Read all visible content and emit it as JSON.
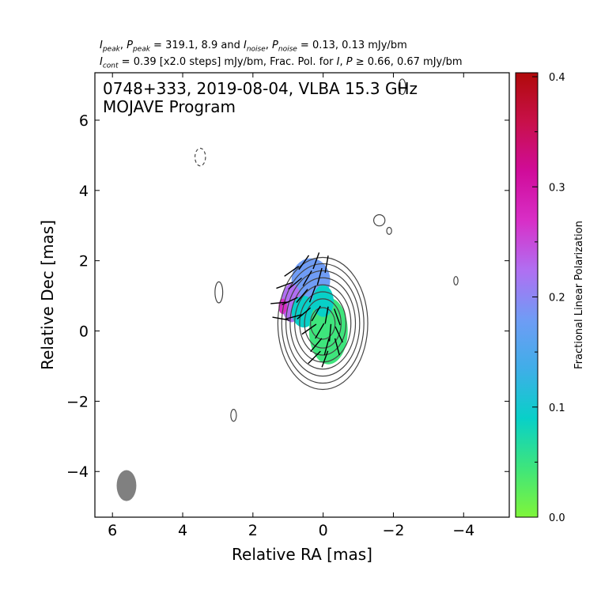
{
  "header": {
    "line1": {
      "peak_sym_i": "I",
      "peak_sub": "peak",
      "peak_sym_p": "P",
      "peak_text": " = 319.1, 8.9 and ",
      "noise_sym_i": "I",
      "noise_sub": "noise",
      "noise_sym_p": "P",
      "noise_text": " = 0.13, 0.13 mJy/bm"
    },
    "line2": {
      "cont_sym": "I",
      "cont_sub": "cont",
      "cont_text": " = 0.39 [x2.0 steps] mJy/bm, Frac. Pol. for ",
      "fp_i": "I",
      "fp_p": "P",
      "fp_text": " ≥  0.66, 0.67 mJy/bm"
    }
  },
  "chart_data": {
    "type": "heatmap",
    "title_line1": "0748+333, 2019-08-04, VLBA 15.3 GHz",
    "title_line2": "MOJAVE Program",
    "xlabel": "Relative RA [mas]",
    "ylabel": "Relative Dec [mas]",
    "xlim": [
      6.5,
      -5.3
    ],
    "ylim": [
      -5.3,
      7.35
    ],
    "x_inverted": true,
    "xticks": [
      6,
      4,
      2,
      0,
      -2,
      -4
    ],
    "xtick_labels": [
      "6",
      "4",
      "2",
      "0",
      "−2",
      "−4"
    ],
    "yticks": [
      -4,
      -2,
      0,
      2,
      4,
      6
    ],
    "ytick_labels": [
      "−4",
      "−2",
      "0",
      "2",
      "4",
      "6"
    ],
    "colorbar": {
      "label": "Fractional Linear Polarization",
      "range": [
        0.0,
        0.4
      ],
      "ticks": [
        0.0,
        0.1,
        0.2,
        0.3,
        0.4
      ],
      "tick_labels": [
        "0.0",
        "0.1",
        "0.2",
        "0.3",
        "0.4"
      ],
      "colormap": [
        "#7ff53a",
        "#3ee57c",
        "#08d0c8",
        "#3faee8",
        "#6f9cf5",
        "#b06ff2",
        "#d82fc7",
        "#d00c9a",
        "#c8104a",
        "#b00a0a"
      ]
    },
    "beam": {
      "x": 5.6,
      "y": -4.4,
      "major": 0.88,
      "minor": 0.56,
      "pa_deg": 0
    },
    "core_contours": {
      "center": [
        0.1,
        0.35
      ],
      "levels": [
        {
          "rx": 0.35,
          "ry": 0.45
        },
        {
          "rx": 0.52,
          "ry": 0.7
        },
        {
          "rx": 0.66,
          "ry": 0.9
        },
        {
          "rx": 0.8,
          "ry": 1.1
        },
        {
          "rx": 0.93,
          "ry": 1.3
        },
        {
          "rx": 1.05,
          "ry": 1.5
        },
        {
          "rx": 1.17,
          "ry": 1.7
        },
        {
          "rx": 1.28,
          "ry": 1.88
        }
      ]
    },
    "isolated_contours": [
      {
        "x": 3.5,
        "y": 4.95,
        "rx": 0.15,
        "ry": 0.25,
        "dashed": true
      },
      {
        "x": 2.97,
        "y": 1.1,
        "rx": 0.11,
        "ry": 0.3,
        "dashed": false
      },
      {
        "x": 2.55,
        "y": -2.4,
        "rx": 0.08,
        "ry": 0.17,
        "dashed": false
      },
      {
        "x": -1.6,
        "y": 3.15,
        "rx": 0.16,
        "ry": 0.16,
        "dashed": false
      },
      {
        "x": -1.88,
        "y": 2.85,
        "rx": 0.07,
        "ry": 0.1,
        "dashed": false
      },
      {
        "x": -2.25,
        "y": 6.95,
        "rx": 0.1,
        "ry": 0.22,
        "dashed": false
      },
      {
        "x": -3.78,
        "y": 1.43,
        "rx": 0.06,
        "ry": 0.12,
        "dashed": false
      }
    ],
    "polarization_regions": [
      {
        "x": 0.35,
        "y": 1.45,
        "rx": 0.55,
        "ry": 0.62,
        "fpol": 0.16
      },
      {
        "x": 0.9,
        "y": 0.8,
        "rx": 0.28,
        "ry": 0.55,
        "fpol": 0.21
      },
      {
        "x": 1.15,
        "y": 0.7,
        "rx": 0.12,
        "ry": 0.22,
        "fpol": 0.28
      },
      {
        "x": 0.55,
        "y": 0.55,
        "rx": 0.35,
        "ry": 0.45,
        "fpol": 0.07
      },
      {
        "x": -0.15,
        "y": 0.0,
        "rx": 0.55,
        "ry": 0.95,
        "fpol": 0.04
      },
      {
        "x": 0.0,
        "y": 0.85,
        "rx": 0.3,
        "ry": 0.45,
        "fpol": 0.09
      }
    ],
    "evpa_ticks": [
      {
        "x": 0.9,
        "y": 1.7,
        "angle": 35
      },
      {
        "x": 0.55,
        "y": 1.95,
        "angle": 55
      },
      {
        "x": 0.2,
        "y": 2.0,
        "angle": 70
      },
      {
        "x": -0.1,
        "y": 1.9,
        "angle": 80
      },
      {
        "x": 1.1,
        "y": 1.3,
        "angle": 20
      },
      {
        "x": 0.8,
        "y": 1.35,
        "angle": 40
      },
      {
        "x": 0.45,
        "y": 1.5,
        "angle": 60
      },
      {
        "x": 0.1,
        "y": 1.55,
        "angle": 75
      },
      {
        "x": 1.25,
        "y": 0.8,
        "angle": 5
      },
      {
        "x": 0.95,
        "y": 0.85,
        "angle": 25
      },
      {
        "x": 0.6,
        "y": 1.0,
        "angle": 50
      },
      {
        "x": 0.3,
        "y": 1.05,
        "angle": 70
      },
      {
        "x": 1.2,
        "y": 0.35,
        "angle": -10
      },
      {
        "x": 0.85,
        "y": 0.4,
        "angle": 15
      },
      {
        "x": 0.55,
        "y": 0.5,
        "angle": 40
      },
      {
        "x": 0.2,
        "y": 0.5,
        "angle": 60
      },
      {
        "x": -0.1,
        "y": 0.45,
        "angle": 80
      },
      {
        "x": -0.4,
        "y": 0.4,
        "angle": -70
      },
      {
        "x": 0.4,
        "y": 0.05,
        "angle": 35
      },
      {
        "x": 0.1,
        "y": 0.0,
        "angle": 60
      },
      {
        "x": -0.2,
        "y": -0.05,
        "angle": 85
      },
      {
        "x": -0.45,
        "y": -0.1,
        "angle": -65
      },
      {
        "x": 0.2,
        "y": -0.4,
        "angle": 50
      },
      {
        "x": -0.1,
        "y": -0.45,
        "angle": 75
      },
      {
        "x": -0.4,
        "y": -0.45,
        "angle": -75
      },
      {
        "x": -0.05,
        "y": -0.8,
        "angle": 70
      },
      {
        "x": 0.25,
        "y": -0.75,
        "angle": 45
      }
    ]
  }
}
